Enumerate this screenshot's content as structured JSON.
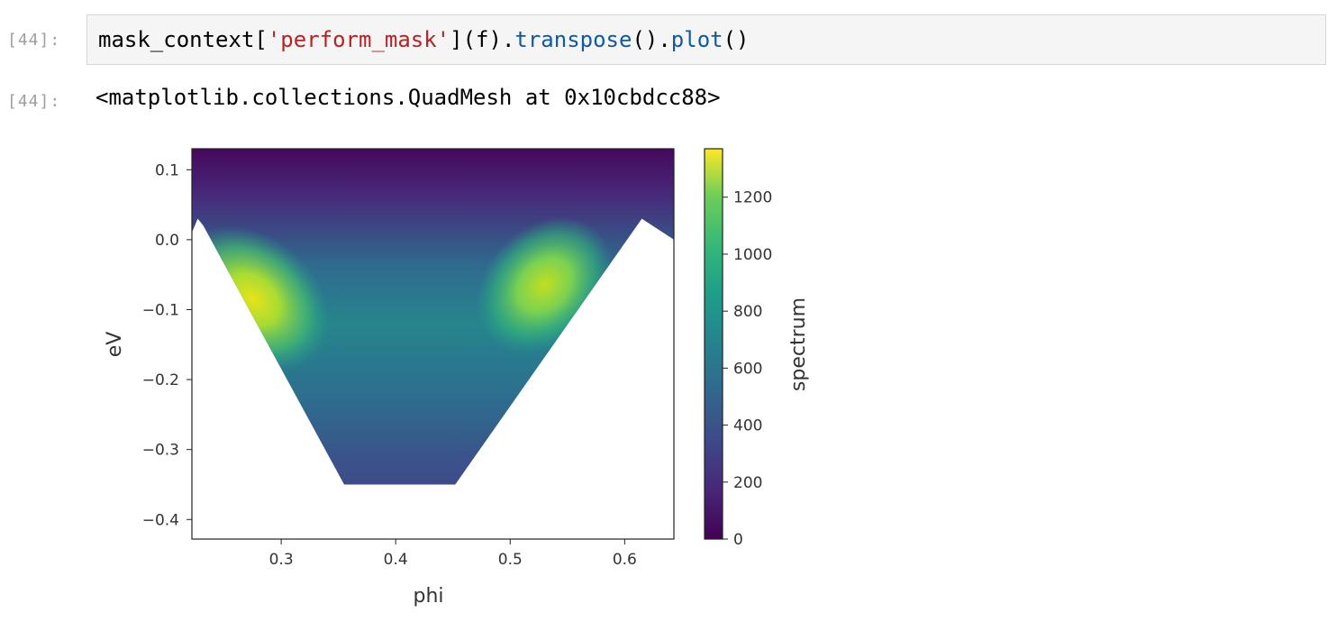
{
  "cell": {
    "in_prompt": "[44]:",
    "out_prompt": "[44]:",
    "code": {
      "part1": "mask_context[",
      "string": "'perform_mask'",
      "part2": "](f).",
      "method1": "transpose",
      "part3": "().",
      "method2": "plot",
      "part4": "()"
    },
    "output_text": "<matplotlib.collections.QuadMesh at 0x10cbdcc88>"
  },
  "chart_data": {
    "type": "heatmap",
    "xlabel": "phi",
    "ylabel": "eV",
    "colorbar_label": "spectrum",
    "xlim": [
      0.222,
      0.643
    ],
    "ylim": [
      -0.428,
      0.13
    ],
    "xticks": [
      0.3,
      0.4,
      0.5,
      0.6
    ],
    "xtick_labels": [
      "0.3",
      "0.4",
      "0.5",
      "0.6"
    ],
    "yticks": [
      0.1,
      0.0,
      -0.1,
      -0.2,
      -0.3,
      -0.4
    ],
    "ytick_labels": [
      "0.1",
      "0.0",
      "−0.1",
      "−0.2",
      "−0.3",
      "−0.4"
    ],
    "colorbar_range": [
      0,
      1370
    ],
    "colorbar_ticks": [
      0,
      200,
      400,
      600,
      800,
      1000,
      1200
    ],
    "colormap": "viridis",
    "mask_boundary": [
      [
        0.222,
        0.01
      ],
      [
        0.227,
        0.03
      ],
      [
        0.232,
        0.02
      ],
      [
        0.355,
        -0.35
      ],
      [
        0.452,
        -0.35
      ],
      [
        0.615,
        0.03
      ],
      [
        0.643,
        0.0
      ]
    ],
    "hotspots": [
      {
        "phi": 0.275,
        "eV": -0.085,
        "value": 1300
      },
      {
        "phi": 0.53,
        "eV": -0.065,
        "value": 1150
      }
    ]
  }
}
